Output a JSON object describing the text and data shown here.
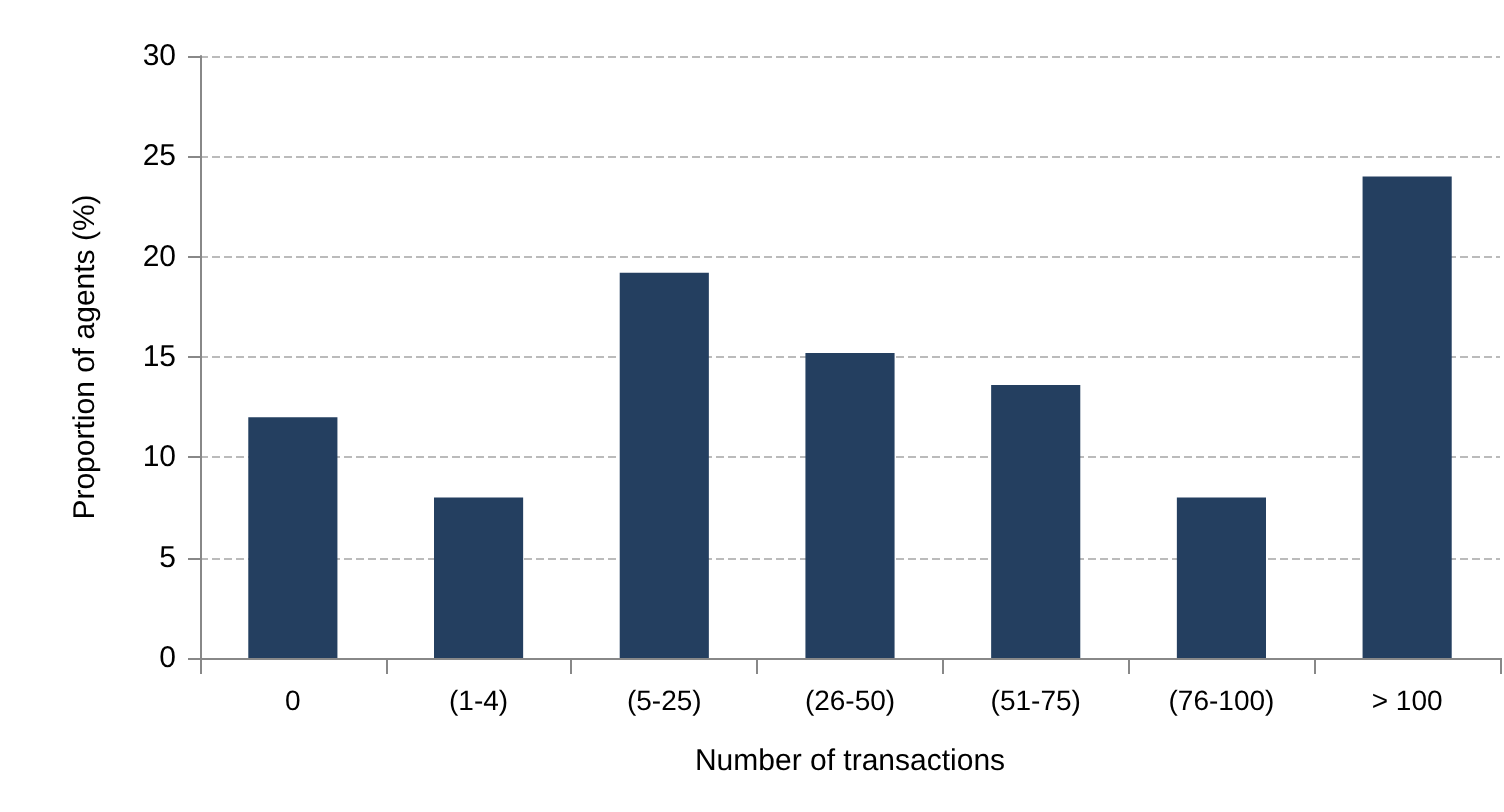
{
  "chart_data": {
    "type": "bar",
    "xlabel": "Number of transactions",
    "ylabel": "Proportion of agents (%)",
    "categories": [
      "0",
      "(1-4)",
      "(5-25)",
      "(26-50)",
      "(51-75)",
      "(76-100)",
      "> 100"
    ],
    "values": [
      12,
      8,
      19.2,
      15.2,
      13.6,
      8,
      24
    ],
    "color": "#243f60",
    "ylim": [
      0,
      30
    ],
    "yticks": [
      0,
      5,
      10,
      15,
      20,
      25,
      30
    ],
    "grid": "y"
  }
}
